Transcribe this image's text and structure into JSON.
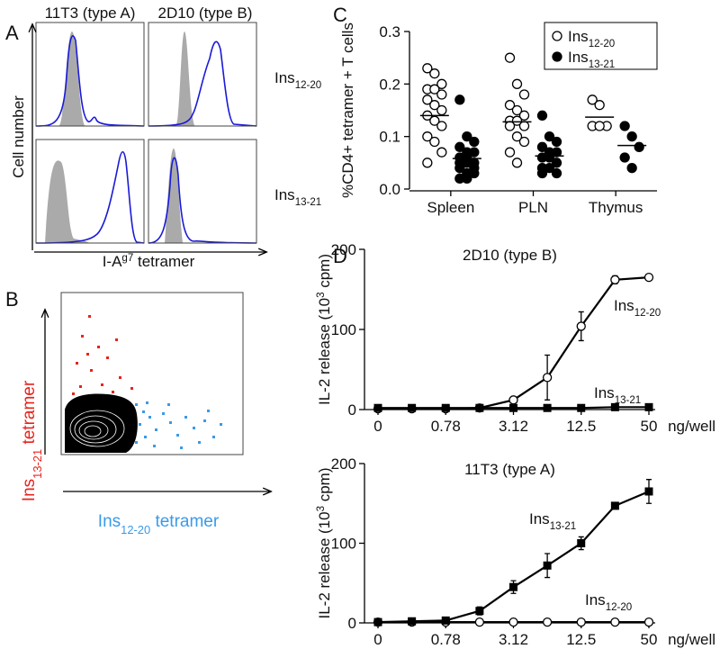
{
  "panels": [
    {
      "letter": "A",
      "col_titles": [
        "11T3 (type A)",
        "2D10 (type B)"
      ],
      "row_labels": [
        {
          "base": "Ins",
          "sub": "12-20"
        },
        {
          "base": "Ins",
          "sub": "13-21"
        }
      ],
      "ylabel": "Cell number",
      "xlabel": {
        "base": "I-A",
        "sup": "g7",
        "post": " tetramer"
      }
    },
    {
      "letter": "B",
      "ylabel": {
        "base": "Ins",
        "sub": "13-21",
        "post": " tetramer"
      },
      "xlabel": {
        "base": "Ins",
        "sub": "12-20",
        "post": " tetramer"
      }
    }
  ],
  "chart_data": [
    {
      "letter": "C",
      "type": "dot",
      "categories": [
        "Spleen",
        "PLN",
        "Thymus"
      ],
      "ylabel": "%CD4+ tetramer + T cells",
      "ylim": [
        0,
        0.3
      ],
      "yticks": [
        {
          "value": 0,
          "label": "0.0"
        },
        0.1,
        0.2,
        0.3
      ],
      "legend": "upper right",
      "series": [
        {
          "name": {
            "base": "Ins",
            "sub": "12-20"
          },
          "marker": "open-circle",
          "color": "#000000",
          "values": [
            [
              0.23,
              0.22,
              0.2,
              0.19,
              0.19,
              0.18,
              0.17,
              0.16,
              0.15,
              0.14,
              0.13,
              0.12,
              0.1,
              0.09,
              0.07,
              0.05
            ],
            [
              0.25,
              0.2,
              0.18,
              0.16,
              0.15,
              0.14,
              0.13,
              0.13,
              0.12,
              0.12,
              0.1,
              0.09,
              0.07,
              0.05
            ],
            [
              0.17,
              0.16,
              0.12,
              0.12,
              0.12
            ]
          ],
          "means": [
            0.14,
            0.128,
            0.137
          ]
        },
        {
          "name": {
            "base": "Ins",
            "sub": "13-21"
          },
          "marker": "filled-circle",
          "color": "#000000",
          "values": [
            [
              0.17,
              0.1,
              0.09,
              0.08,
              0.07,
              0.07,
              0.06,
              0.06,
              0.05,
              0.05,
              0.05,
              0.04,
              0.04,
              0.03,
              0.03,
              0.02,
              0.02
            ],
            [
              0.14,
              0.1,
              0.09,
              0.08,
              0.07,
              0.07,
              0.06,
              0.06,
              0.05,
              0.04,
              0.04,
              0.03,
              0.03
            ],
            [
              0.12,
              0.1,
              0.08,
              0.06,
              0.04
            ]
          ],
          "means": [
            0.058,
            0.063,
            0.083
          ]
        }
      ]
    },
    {
      "letter": "D",
      "type": "line",
      "title": "2D10 (type B)",
      "categories": [
        "0",
        null,
        "0.78",
        null,
        "3.12",
        null,
        "12.5",
        null,
        "50"
      ],
      "xlabel": "ng/well",
      "ylabel": {
        "base": "IL-2 release (10",
        "sup": "3",
        "post": " cpm)"
      },
      "ylim": [
        0,
        200
      ],
      "yticks": [
        0,
        100,
        200
      ],
      "series": [
        {
          "name": {
            "base": "Ins",
            "sub": "12-20"
          },
          "marker": "open-circle",
          "color": "#000000",
          "values": [
            1,
            1,
            1,
            2,
            12,
            40,
            104,
            162,
            165
          ],
          "errors": [
            0,
            0,
            0,
            0,
            3,
            28,
            18,
            5,
            0
          ]
        },
        {
          "name": {
            "base": "Ins",
            "sub": "13-21"
          },
          "marker": "filled-square",
          "color": "#000000",
          "values": [
            2,
            2,
            2,
            2,
            2,
            2,
            2,
            3,
            3
          ],
          "errors": [
            0,
            0,
            0,
            0,
            0,
            0,
            0,
            0,
            0
          ]
        }
      ]
    },
    {
      "type": "line",
      "title": "11T3 (type A)",
      "categories": [
        "0",
        null,
        "0.78",
        null,
        "3.12",
        null,
        "12.5",
        null,
        "50"
      ],
      "xlabel": "ng/well",
      "ylabel": {
        "base": "IL-2 release (10",
        "sup": "3",
        "post": " cpm)"
      },
      "ylim": [
        0,
        200
      ],
      "yticks": [
        0,
        100,
        200
      ],
      "series": [
        {
          "name": {
            "base": "Ins",
            "sub": "12-20"
          },
          "marker": "open-circle",
          "color": "#000000",
          "values": [
            1,
            1,
            1,
            1,
            1,
            1,
            1,
            1,
            1
          ],
          "errors": [
            0,
            0,
            0,
            0,
            0,
            0,
            0,
            0,
            0
          ]
        },
        {
          "name": {
            "base": "Ins",
            "sub": "13-21"
          },
          "marker": "filled-square",
          "color": "#000000",
          "values": [
            1,
            2,
            3,
            15,
            45,
            72,
            100,
            147,
            165
          ],
          "errors": [
            0,
            0,
            0,
            5,
            8,
            15,
            8,
            3,
            15
          ]
        }
      ]
    }
  ]
}
